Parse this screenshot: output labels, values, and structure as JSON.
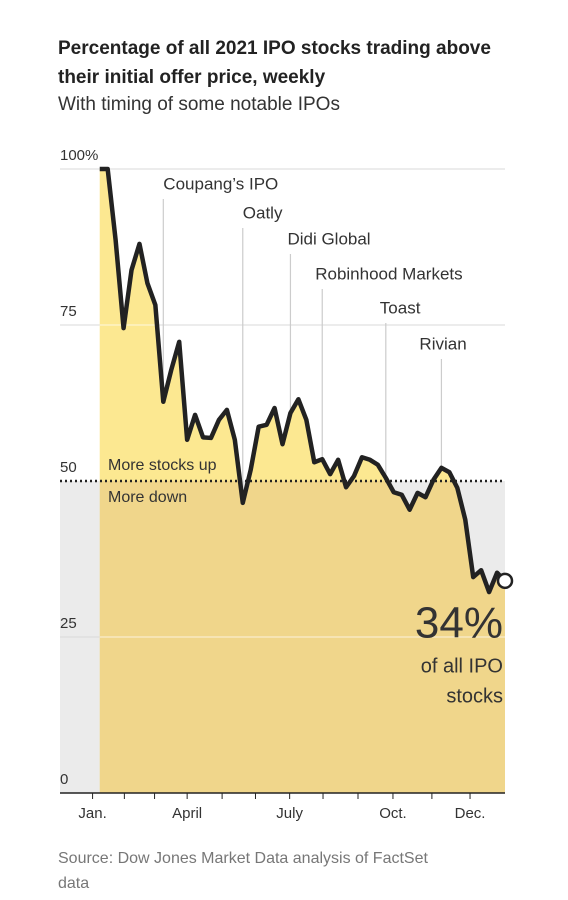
{
  "chart_data": {
    "type": "area",
    "title": "Percentage of all 2021 IPO stocks trading above their initial offer price, weekly",
    "subtitle": "With timing of some notable IPOs",
    "source": "Source: Dow Jones Market Data analysis of FactSet data",
    "x": [
      1,
      2,
      3,
      4,
      5,
      6,
      7,
      8,
      9,
      10,
      11,
      12,
      13,
      14,
      15,
      16,
      17,
      18,
      19,
      20,
      21,
      22,
      23,
      24,
      25,
      26,
      27,
      28,
      29,
      30,
      31,
      32,
      33,
      34,
      35,
      36,
      37,
      38,
      39,
      40,
      41,
      42,
      43,
      44,
      45,
      46,
      47,
      48,
      49,
      50,
      51,
      52
    ],
    "series": [
      {
        "name": "IPO stocks above offer price",
        "color": "#222222",
        "values": [
          100,
          100,
          88.6,
          74.5,
          83.8,
          88,
          81.7,
          78.2,
          62.7,
          67.8,
          72.3,
          56.6,
          60.6,
          57,
          56.9,
          59.8,
          61.4,
          56.6,
          46.5,
          51.8,
          58.7,
          59,
          61.7,
          55.9,
          60.9,
          63.1,
          59.8,
          53,
          53.5,
          51.1,
          53.4,
          49,
          50.8,
          53.8,
          53.4,
          52.6,
          50.5,
          48.2,
          47.8,
          45.4,
          48.1,
          47.4,
          50.2,
          52.1,
          51.4,
          48.9,
          43.8,
          34.6,
          35.7,
          32.2,
          35.3,
          34
        ]
      }
    ],
    "xlim": [
      -4,
      52
    ],
    "xticks": [
      {
        "value": 0.1,
        "label": "Jan."
      },
      {
        "value": 4.1,
        "label": null
      },
      {
        "value": 7.9,
        "label": null
      },
      {
        "value": 12,
        "label": "April"
      },
      {
        "value": 16.4,
        "label": null
      },
      {
        "value": 20.6,
        "label": null
      },
      {
        "value": 24.9,
        "label": "July"
      },
      {
        "value": 29.1,
        "label": null
      },
      {
        "value": 33.5,
        "label": null
      },
      {
        "value": 37.9,
        "label": "Oct."
      },
      {
        "value": 42.8,
        "label": null
      },
      {
        "value": 47.6,
        "label": "Dec."
      }
    ],
    "ylim": [
      0,
      100
    ],
    "yticks": [
      0,
      25,
      {
        "value": 50,
        "label": "50"
      },
      75,
      {
        "value": 100,
        "label": "100%"
      }
    ],
    "threshold": 50,
    "threshold_labels": [
      "More stocks up",
      "More down"
    ],
    "fill_above": "#fce891",
    "fill_below": "#f0d68b",
    "background_below": "#ebebeb",
    "annotations": [
      {
        "label": "Coupang’s IPO",
        "x": 9
      },
      {
        "label": "Oatly",
        "x": 19
      },
      {
        "label": "Didi Global",
        "x": 25
      },
      {
        "label": "Robinhood Markets",
        "x": 29
      },
      {
        "label": "Toast",
        "x": 37
      },
      {
        "label": "Rivian",
        "x": 44
      }
    ],
    "callout": "34%",
    "callout_note": [
      "of all IPO",
      "stocks"
    ]
  }
}
